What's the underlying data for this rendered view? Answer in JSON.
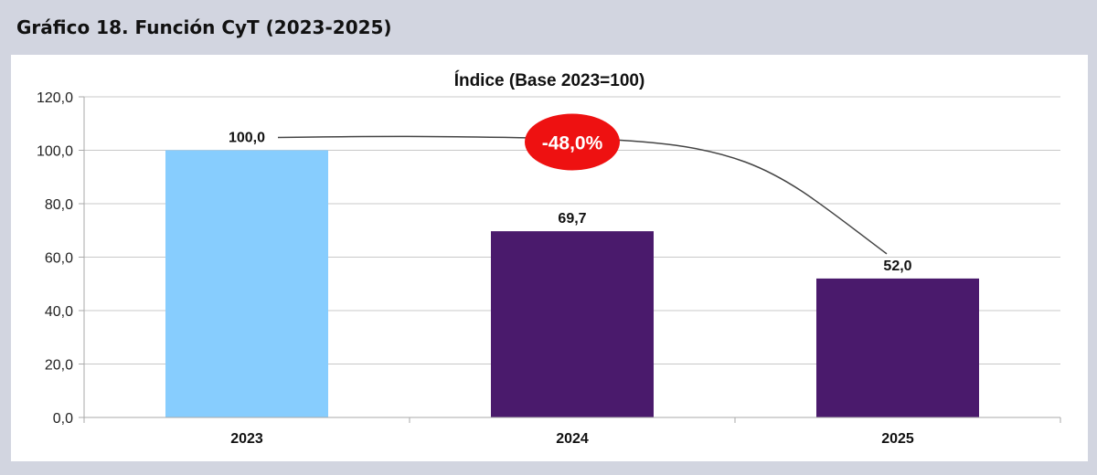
{
  "header": {
    "title": "Gráfico 18. Función CyT (2023-2025)"
  },
  "chart_data": {
    "type": "bar",
    "title": "Índice (Base 2023=100)",
    "categories": [
      "2023",
      "2024",
      "2025"
    ],
    "values": [
      100.0,
      69.7,
      52.0
    ],
    "value_labels": [
      "100,0",
      "69,7",
      "52,0"
    ],
    "ylim": [
      0,
      120
    ],
    "yticks": [
      "0,0",
      "20,0",
      "40,0",
      "60,0",
      "80,0",
      "100,0",
      "120,0"
    ],
    "grid": true,
    "bar_colors": [
      "#87cdfe",
      "#4a1a6c",
      "#4a1a6c"
    ],
    "annotation": {
      "label": "-48,0%",
      "color": "#ee1111"
    }
  }
}
